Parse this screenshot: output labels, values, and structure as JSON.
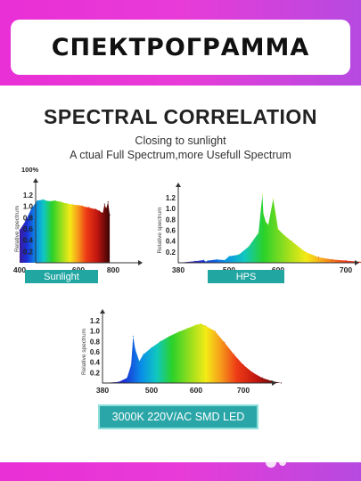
{
  "banner": {
    "title": "СПЕКТРОГРАММА"
  },
  "panel": {
    "heading": "SPECTRAL CORRELATION",
    "line1": "Closing to sunlight",
    "line2": "A  ctual Full Spectrum,more Usefull Spectrum",
    "percent_label": "100%"
  },
  "watermark": {
    "text": "Avito",
    "icon": "avito-dots-icon"
  },
  "colors": {
    "background": "#e83bd8",
    "tag": "#22a6a2"
  },
  "chart_data": [
    {
      "type": "area",
      "name": "Sunlight",
      "ylabel": "Relative spectrum",
      "ylim": [
        0,
        1.2
      ],
      "yticks": [
        "1.2",
        "1.0",
        "0.8",
        "0.6",
        "0.4",
        "0.2"
      ],
      "xlim": [
        400,
        800
      ],
      "xticks": [
        "400",
        "600",
        "800"
      ],
      "x": [
        400,
        420,
        440,
        460,
        480,
        500,
        520,
        540,
        560,
        580,
        600,
        620,
        640,
        660,
        680,
        700,
        720,
        740,
        750,
        760,
        770,
        780
      ],
      "y": [
        0.58,
        0.74,
        0.96,
        1.1,
        1.12,
        1.09,
        1.1,
        1.08,
        1.05,
        1.03,
        1.02,
        1.01,
        0.99,
        0.98,
        0.96,
        0.95,
        0.92,
        0.88,
        1.04,
        0.96,
        1.08,
        0.85
      ]
    },
    {
      "type": "area",
      "name": "HPS",
      "ylabel": "Relative spectrum",
      "ylim": [
        0,
        1.2
      ],
      "yticks": [
        "1.2",
        "1.0",
        "0.8",
        "0.6",
        "0.4",
        "0.2"
      ],
      "xlim": [
        380,
        760
      ],
      "xticks": [
        "380",
        "500",
        "600",
        "700"
      ],
      "x": [
        380,
        420,
        440,
        445,
        450,
        470,
        490,
        495,
        500,
        520,
        540,
        560,
        565,
        568,
        570,
        575,
        580,
        590,
        595,
        600,
        610,
        620,
        640,
        660,
        680,
        700,
        740
      ],
      "y": [
        0,
        0.03,
        0.05,
        0.02,
        0.04,
        0.06,
        0.05,
        0.08,
        0.12,
        0.15,
        0.3,
        0.55,
        1.0,
        1.25,
        0.9,
        0.75,
        0.7,
        1.18,
        0.9,
        0.62,
        0.5,
        0.4,
        0.2,
        0.1,
        0.06,
        0.04,
        0
      ]
    },
    {
      "type": "area",
      "name": "3000K 220V/AC SMD LED",
      "ylabel": "Relative spectrum",
      "ylim": [
        0,
        1.2
      ],
      "yticks": [
        "1.2",
        "1.0",
        "0.8",
        "0.6",
        "0.4",
        "0.2"
      ],
      "xlim": [
        380,
        800
      ],
      "xticks": [
        "380",
        "500",
        "600",
        "700"
      ],
      "x": [
        380,
        420,
        440,
        450,
        455,
        460,
        470,
        480,
        500,
        520,
        540,
        560,
        580,
        600,
        610,
        620,
        640,
        660,
        680,
        700,
        720,
        740,
        760,
        780
      ],
      "y": [
        0,
        0.02,
        0.1,
        0.35,
        0.9,
        0.65,
        0.42,
        0.55,
        0.68,
        0.8,
        0.9,
        0.98,
        1.05,
        1.12,
        1.14,
        1.1,
        1.0,
        0.78,
        0.55,
        0.35,
        0.2,
        0.1,
        0.04,
        0
      ]
    }
  ]
}
